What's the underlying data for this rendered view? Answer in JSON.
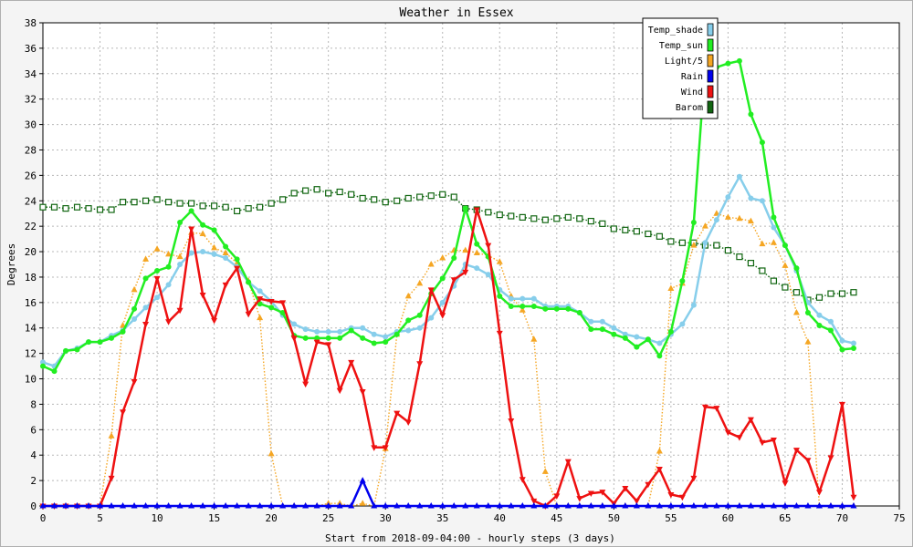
{
  "chart_data": {
    "type": "line",
    "title": "Weather in Essex",
    "xlabel": "Start from 2018-09-04:00 - hourly steps (3 days)",
    "ylabel": "Degrees",
    "xlim": [
      0,
      75
    ],
    "ylim": [
      0,
      38
    ],
    "x_ticks": [
      0,
      5,
      10,
      15,
      20,
      25,
      30,
      35,
      40,
      45,
      50,
      55,
      60,
      65,
      70,
      75
    ],
    "y_ticks": [
      0,
      2,
      4,
      6,
      8,
      10,
      12,
      14,
      16,
      18,
      20,
      22,
      24,
      26,
      28,
      30,
      32,
      34,
      36,
      38
    ],
    "grid": true,
    "legend_position": "top-right",
    "x": [
      0,
      1,
      2,
      3,
      4,
      5,
      6,
      7,
      8,
      9,
      10,
      11,
      12,
      13,
      14,
      15,
      16,
      17,
      18,
      19,
      20,
      21,
      22,
      23,
      24,
      25,
      26,
      27,
      28,
      29,
      30,
      31,
      32,
      33,
      34,
      35,
      36,
      37,
      38,
      39,
      40,
      41,
      42,
      43,
      44,
      45,
      46,
      47,
      48,
      49,
      50,
      51,
      52,
      53,
      54,
      55,
      56,
      57,
      58,
      59,
      60,
      61,
      62,
      63,
      64,
      65,
      66,
      67,
      68,
      69,
      70,
      71
    ],
    "series": [
      {
        "name": "Temp_shade",
        "color": "#87ceeb",
        "marker": "circle",
        "style": "solid",
        "values": [
          11.3,
          11.0,
          12.2,
          12.4,
          12.9,
          12.9,
          13.4,
          13.8,
          14.7,
          15.6,
          16.4,
          17.4,
          19.0,
          19.9,
          20.0,
          19.8,
          19.5,
          18.8,
          17.6,
          16.9,
          16.1,
          15.0,
          14.3,
          13.9,
          13.7,
          13.7,
          13.7,
          14.0,
          14.0,
          13.5,
          13.3,
          13.7,
          13.8,
          14.0,
          14.8,
          16.0,
          17.3,
          19.0,
          18.7,
          18.2,
          17.0,
          16.3,
          16.3,
          16.3,
          15.7,
          15.7,
          15.7,
          15.2,
          14.5,
          14.5,
          14.0,
          13.5,
          13.3,
          13.1,
          12.8,
          13.5,
          14.3,
          15.8,
          20.7,
          22.5,
          24.3,
          25.9,
          24.2,
          24.0,
          21.9,
          20.5,
          18.5,
          16.0,
          15.0,
          14.5,
          13.0,
          12.8
        ]
      },
      {
        "name": "Temp_sun",
        "color": "#22ee22",
        "marker": "circle",
        "style": "solid",
        "values": [
          11.0,
          10.6,
          12.2,
          12.3,
          12.9,
          12.9,
          13.2,
          13.7,
          15.5,
          17.9,
          18.5,
          18.8,
          22.3,
          23.2,
          22.1,
          21.7,
          20.4,
          19.4,
          17.6,
          15.9,
          15.6,
          15.2,
          13.4,
          13.2,
          13.2,
          13.2,
          13.2,
          13.8,
          13.2,
          12.8,
          12.9,
          13.5,
          14.6,
          15.0,
          16.7,
          17.9,
          19.5,
          23.4,
          20.6,
          19.6,
          16.5,
          15.7,
          15.7,
          15.7,
          15.5,
          15.5,
          15.5,
          15.2,
          13.9,
          13.9,
          13.5,
          13.2,
          12.5,
          13.1,
          11.8,
          13.7,
          17.7,
          22.3,
          34.7,
          34.5,
          34.8,
          35.0,
          30.8,
          28.6,
          22.7,
          20.5,
          18.7,
          15.2,
          14.2,
          13.8,
          12.3,
          12.4
        ]
      },
      {
        "name": "Light/5",
        "color": "#f5a623",
        "marker": "triangle-up",
        "style": "dotted",
        "values": [
          0,
          0,
          0,
          0,
          0,
          0,
          5.5,
          14.2,
          17.0,
          19.4,
          20.2,
          19.8,
          19.6,
          21.5,
          21.4,
          20.3,
          19.9,
          19.1,
          17.7,
          14.8,
          4.1,
          0,
          0,
          0,
          0,
          0.2,
          0.2,
          0,
          0.2,
          0,
          4.5,
          13.5,
          16.5,
          17.5,
          19.0,
          19.5,
          20.1,
          20.1,
          19.9,
          19.7,
          19.2,
          16.5,
          15.4,
          13.1,
          2.7,
          0,
          0,
          0,
          0,
          0,
          0,
          0,
          0,
          0,
          4.3,
          17.1,
          17.5,
          20.5,
          22.0,
          23.0,
          22.7,
          22.6,
          22.4,
          20.6,
          20.7,
          18.9,
          15.2,
          12.9,
          0,
          0,
          0,
          0
        ]
      },
      {
        "name": "Rain",
        "color": "#0000ee",
        "marker": "triangle-up",
        "style": "solid",
        "values": [
          0,
          0,
          0,
          0,
          0,
          0,
          0,
          0,
          0,
          0,
          0,
          0,
          0,
          0,
          0,
          0,
          0,
          0,
          0,
          0,
          0,
          0,
          0,
          0,
          0,
          0,
          0,
          0,
          2.0,
          0,
          0,
          0,
          0,
          0,
          0,
          0,
          0,
          0,
          0,
          0,
          0,
          0,
          0,
          0,
          0,
          0,
          0,
          0,
          0,
          0,
          0,
          0,
          0,
          0,
          0,
          0,
          0,
          0,
          0,
          0,
          0,
          0,
          0,
          0,
          0,
          0,
          0,
          0,
          0,
          0,
          0,
          0
        ]
      },
      {
        "name": "Wind",
        "color": "#ee1111",
        "marker": "triangle-down",
        "style": "solid",
        "values": [
          0,
          0,
          0,
          0,
          0,
          0,
          2.2,
          7.4,
          9.8,
          14.3,
          17.9,
          14.5,
          15.4,
          21.8,
          16.6,
          14.6,
          17.4,
          18.7,
          15.1,
          16.3,
          16.1,
          16.0,
          13.2,
          9.6,
          12.9,
          12.7,
          9.1,
          11.3,
          9.0,
          4.6,
          4.6,
          7.3,
          6.6,
          11.2,
          17.0,
          15.0,
          17.8,
          18.4,
          23.3,
          20.5,
          13.6,
          6.7,
          2.1,
          0.4,
          0,
          0.8,
          3.5,
          0.6,
          1.0,
          1.1,
          0.2,
          1.4,
          0.4,
          1.7,
          2.9,
          0.9,
          0.7,
          2.2,
          7.8,
          7.7,
          5.8,
          5.4,
          6.8,
          5.0,
          5.2,
          1.8,
          4.4,
          3.6,
          1.1,
          3.8,
          8.0,
          0.7
        ]
      },
      {
        "name": "Barom",
        "color": "#116611",
        "marker": "square",
        "style": "dotted",
        "values": [
          23.5,
          23.5,
          23.4,
          23.5,
          23.4,
          23.3,
          23.3,
          23.9,
          23.9,
          24.0,
          24.1,
          23.9,
          23.8,
          23.8,
          23.6,
          23.6,
          23.5,
          23.2,
          23.4,
          23.5,
          23.8,
          24.1,
          24.6,
          24.8,
          24.9,
          24.6,
          24.7,
          24.5,
          24.2,
          24.1,
          23.9,
          24.0,
          24.2,
          24.3,
          24.4,
          24.5,
          24.3,
          23.4,
          23.3,
          23.1,
          22.9,
          22.8,
          22.7,
          22.6,
          22.5,
          22.6,
          22.7,
          22.6,
          22.4,
          22.2,
          21.8,
          21.7,
          21.6,
          21.4,
          21.2,
          20.8,
          20.7,
          20.7,
          20.5,
          20.5,
          20.1,
          19.6,
          19.1,
          18.5,
          17.7,
          17.2,
          16.8,
          16.2,
          16.4,
          16.7,
          16.7,
          16.8
        ]
      }
    ]
  }
}
